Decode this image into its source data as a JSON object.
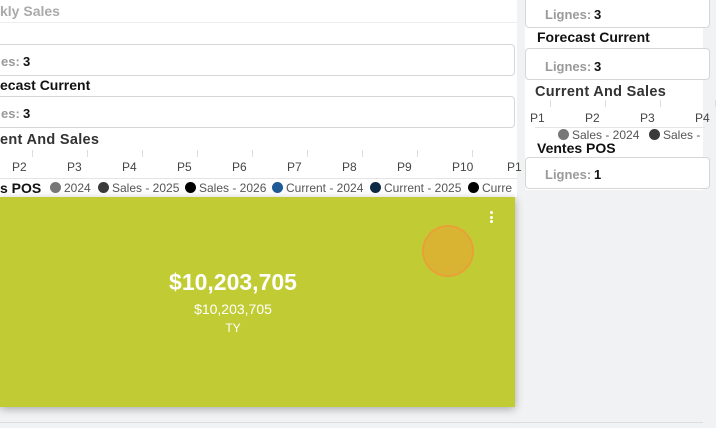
{
  "left": {
    "section_title_top": "kly Sales",
    "box1": {
      "label": "es:",
      "value": "3"
    },
    "forecast_title": "ecast Current",
    "box2": {
      "label": "es:",
      "value": "3"
    },
    "current_sales_title": "ent And Sales",
    "periods": [
      "P2",
      "P3",
      "P4",
      "P5",
      "P6",
      "P7",
      "P8",
      "P9",
      "P10",
      "P1"
    ],
    "ventes_title": "s POS",
    "legend": [
      {
        "label": "2024",
        "color": "#777777"
      },
      {
        "label": "Sales - 2025",
        "color": "#3a3a3a"
      },
      {
        "label": "Sales - 2026",
        "color": "#000000"
      },
      {
        "label": "Current - 2024",
        "color": "#1f5a96"
      },
      {
        "label": "Current - 2025",
        "color": "#0d2a45"
      },
      {
        "label": "Curre",
        "color": "#000000"
      }
    ]
  },
  "kpi_card": {
    "main_value": "$10,203,705",
    "sub_value": "$10,203,705",
    "caption": "TY",
    "background": "#c1cb33",
    "menu_icon": "more-vertical-icon"
  },
  "right": {
    "box1": {
      "label": "Lignes:",
      "value": "3"
    },
    "forecast_title": "Forecast Current",
    "box2": {
      "label": "Lignes:",
      "value": "3"
    },
    "current_sales_title": "Current And Sales",
    "periods": [
      "P1",
      "P2",
      "P3",
      "P4"
    ],
    "ventes_title": "Ventes POS",
    "legend": [
      {
        "label": "Sales - 2024",
        "color": "#777777"
      },
      {
        "label": "Sales -",
        "color": "#3a3a3a"
      }
    ],
    "box3": {
      "label": "Lignes:",
      "value": "1"
    }
  }
}
